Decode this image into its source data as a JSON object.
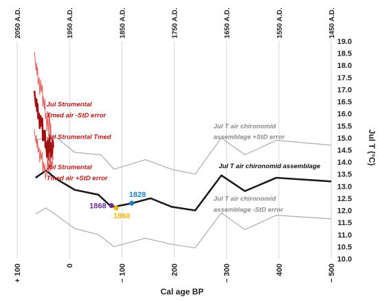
{
  "chart_data": {
    "type": "line",
    "xlabel": "Cal age BP",
    "ylabel": "Jul T (°C)",
    "xlim": [
      -100,
      500
    ],
    "ylim": [
      10.0,
      19.0
    ],
    "x_ticks": [
      -100,
      0,
      100,
      200,
      300,
      400,
      500
    ],
    "x_tick_labels": [
      "+ 100",
      "0",
      "− 100",
      "200",
      "− 300",
      "400",
      "− 500"
    ],
    "y_ticks": [
      10.0,
      10.5,
      11.0,
      11.5,
      12.0,
      12.5,
      13.0,
      13.5,
      14.0,
      14.5,
      15.0,
      15.5,
      16.0,
      16.5,
      17.0,
      17.5,
      18.0,
      18.5,
      19.0
    ],
    "y_tick_labels": [
      "10.0",
      "10.5",
      "11.0",
      "11.5",
      "12.0",
      "12.5",
      "13.0",
      "13.5",
      "14.0",
      "14.5",
      "15.0",
      "15.5",
      "16.0",
      "16.5",
      "17.0",
      "17.5",
      "18.0",
      "18.5",
      "19.0"
    ],
    "top_axis": {
      "ticks": [
        -100,
        0,
        100,
        200,
        300,
        400,
        500
      ],
      "labels": [
        "2050 A.D.",
        "1950 A.D.",
        "1850 A.D.",
        "1750 A.D.",
        "1650 A.D.",
        "1550 A.D.",
        "1450 A.D."
      ]
    },
    "grid": true,
    "series": [
      {
        "name": "Jul T air chironomid assemblage +StD error",
        "color": "#aaaaaa",
        "x": [
          -65,
          -30,
          10,
          60,
          85,
          145,
          195,
          240,
          290,
          335,
          395,
          500
        ],
        "y": [
          14.9,
          15.1,
          14.4,
          14.3,
          13.7,
          14.1,
          13.7,
          13.5,
          15.0,
          14.3,
          14.9,
          14.7
        ]
      },
      {
        "name": "Jul T air chironomid assemblage",
        "color": "#1a1a1a",
        "x": [
          -65,
          -45,
          -25,
          10,
          55,
          75,
          85,
          120,
          155,
          195,
          240,
          290,
          335,
          395,
          500
        ],
        "y": [
          13.35,
          13.65,
          13.3,
          12.85,
          12.65,
          12.25,
          12.15,
          12.3,
          12.5,
          12.15,
          12.0,
          13.45,
          12.8,
          13.35,
          13.2
        ]
      },
      {
        "name": "Jul T air chironomid assemblage -StD error",
        "color": "#aaaaaa",
        "x": [
          -65,
          -45,
          -25,
          10,
          55,
          85,
          145,
          195,
          240,
          290,
          335,
          395,
          500
        ],
        "y": [
          11.85,
          12.1,
          11.8,
          11.25,
          11.0,
          10.5,
          10.85,
          10.6,
          10.45,
          11.9,
          11.2,
          11.8,
          11.65
        ]
      },
      {
        "name": "Jul Strumental Tmed air -StD error",
        "color": "#e06060",
        "x": [
          -67,
          -66,
          -64,
          -63,
          -62,
          -61,
          -60,
          -58,
          -57,
          -55,
          -54,
          -52,
          -51,
          -50,
          -48,
          -47,
          -46,
          -45,
          -43,
          -42,
          -41,
          -40,
          -39,
          -38,
          -37,
          -36,
          -35,
          -34,
          -33,
          -32,
          -31
        ],
        "y": [
          18.55,
          18.3,
          17.8,
          18.1,
          17.6,
          17.9,
          17.2,
          17.5,
          16.8,
          17.4,
          16.9,
          17.2,
          16.3,
          16.7,
          16.2,
          16.6,
          15.8,
          16.0,
          15.3,
          16.1,
          15.6,
          15.1,
          15.9,
          16.0,
          15.0,
          15.6,
          14.9,
          15.0,
          14.7,
          15.1,
          14.95
        ]
      },
      {
        "name": "Jul Strumental Tmed",
        "color": "#a01010",
        "x": [
          -67,
          -66,
          -64,
          -63,
          -62,
          -61,
          -60,
          -58,
          -57,
          -55,
          -54,
          -52,
          -51,
          -50,
          -48,
          -47,
          -46,
          -45,
          -43,
          -42,
          -41,
          -40,
          -39,
          -38,
          -37,
          -36,
          -35,
          -34,
          -33,
          -32,
          -31
        ],
        "y": [
          16.95,
          16.7,
          16.3,
          16.6,
          16.1,
          16.4,
          15.8,
          16.0,
          15.4,
          15.9,
          15.5,
          15.8,
          14.9,
          15.3,
          14.9,
          15.3,
          14.6,
          14.8,
          14.2,
          14.9,
          14.5,
          14.1,
          14.9,
          15.0,
          14.1,
          14.8,
          14.2,
          14.6,
          14.3,
          14.9,
          14.6
        ]
      },
      {
        "name": "Jul Strumental Tmed air +StD error",
        "color": "#e06060",
        "x": [
          -67,
          -66,
          -64,
          -63,
          -62,
          -61,
          -60,
          -58,
          -57,
          -55,
          -54,
          -52,
          -51,
          -50,
          -48,
          -47,
          -46,
          -45,
          -43,
          -42,
          -41,
          -40,
          -39,
          -38,
          -37,
          -36,
          -35,
          -34,
          -33,
          -32,
          -31
        ],
        "y": [
          15.35,
          15.1,
          14.8,
          15.1,
          14.6,
          14.9,
          14.4,
          14.6,
          14.0,
          14.5,
          14.1,
          14.4,
          13.6,
          14.0,
          13.6,
          13.9,
          13.3,
          13.5,
          13.5,
          14.2,
          13.9,
          13.6,
          14.3,
          14.4,
          13.6,
          14.2,
          13.7,
          14.0,
          13.8,
          14.3,
          14.1
        ]
      }
    ],
    "highlight_points": [
      {
        "label": "1868",
        "x": 80,
        "y": 12.2,
        "color": "#6a2c91"
      },
      {
        "label": "1860",
        "x": 89,
        "y": 12.1,
        "color": "#f0b400"
      },
      {
        "label": "1828",
        "x": 119,
        "y": 12.3,
        "color": "#1f7fbf"
      }
    ],
    "annotations": [
      {
        "text": "Jul Strumental",
        "color": "#b01818",
        "x": -44,
        "y": 16.3
      },
      {
        "text": "Tmed air -StD error",
        "color": "#b01818",
        "x": -44,
        "y": 15.85
      },
      {
        "text": "Jul Strumental Tmed",
        "color": "#b01818",
        "x": -44,
        "y": 14.95
      },
      {
        "text": "Jul Strumental",
        "color": "#b01818",
        "x": -44,
        "y": 13.7
      },
      {
        "text": "Tmed air +StD error",
        "color": "#b01818",
        "x": -44,
        "y": 13.25
      },
      {
        "text": "Jul T air chironomid",
        "color": "#8a8a8a",
        "x": 275,
        "y": 15.4
      },
      {
        "text": "assemblage +StD error",
        "color": "#8a8a8a",
        "x": 275,
        "y": 14.95
      },
      {
        "text": "Jul T air chironomid assemblage",
        "color": "#111111",
        "x": 285,
        "y": 13.75
      },
      {
        "text": "Jul T air chironomid",
        "color": "#8a8a8a",
        "x": 275,
        "y": 12.4
      },
      {
        "text": "assemblage -StD error",
        "color": "#8a8a8a",
        "x": 275,
        "y": 11.95
      }
    ]
  }
}
